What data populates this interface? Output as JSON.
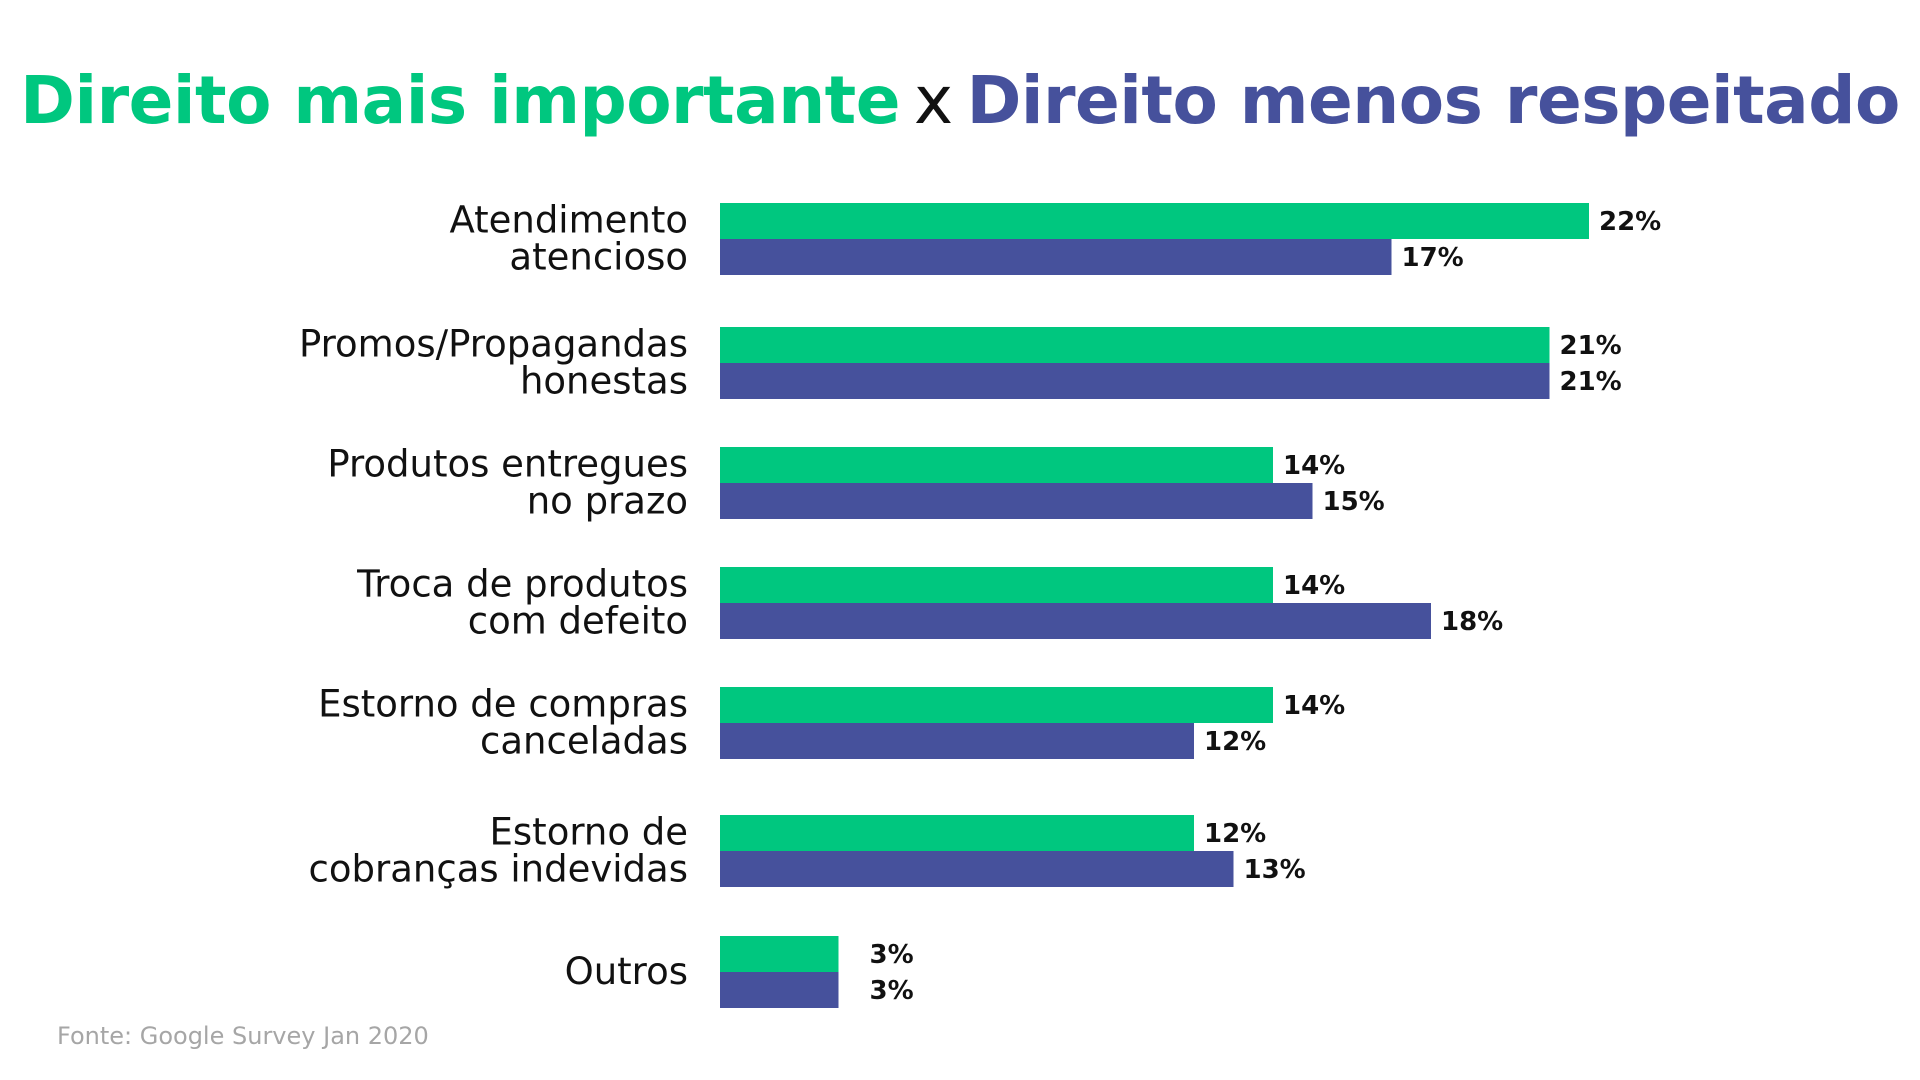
{
  "title": {
    "part_a": "Direito mais importante",
    "separator": "x",
    "part_b": "Direito menos respeitado"
  },
  "colors": {
    "mais_importante": "#00c77f",
    "menos_respeitado": "#46519c",
    "text": "#111111",
    "source": "#a6a6a6"
  },
  "chart_data": {
    "type": "bar",
    "orientation": "horizontal",
    "categories": [
      [
        "Atendimento",
        "atencioso"
      ],
      [
        "Promos/Propagandas",
        "honestas"
      ],
      [
        "Produtos entregues",
        "no prazo"
      ],
      [
        "Troca de produtos",
        "com defeito"
      ],
      [
        "Estorno de compras",
        "canceladas"
      ],
      [
        "Estorno de",
        "cobranças indevidas"
      ],
      [
        "Outros"
      ]
    ],
    "series": [
      {
        "values": [
          22,
          21,
          14,
          14,
          14,
          12,
          3
        ],
        "labels": [
          "22%",
          "21%",
          "14%",
          "14%",
          "14%",
          "12%",
          "3%"
        ],
        "color": "#00c77f"
      },
      {
        "values": [
          17,
          21,
          15,
          18,
          12,
          13,
          3
        ],
        "labels": [
          "17%",
          "21%",
          "15%",
          "18%",
          "12%",
          "13%",
          "3%"
        ],
        "color": "#46519c"
      }
    ],
    "xlim": [
      0,
      22
    ],
    "grid": false,
    "legend": "none"
  },
  "source": "Fonte: Google Survey Jan 2020"
}
